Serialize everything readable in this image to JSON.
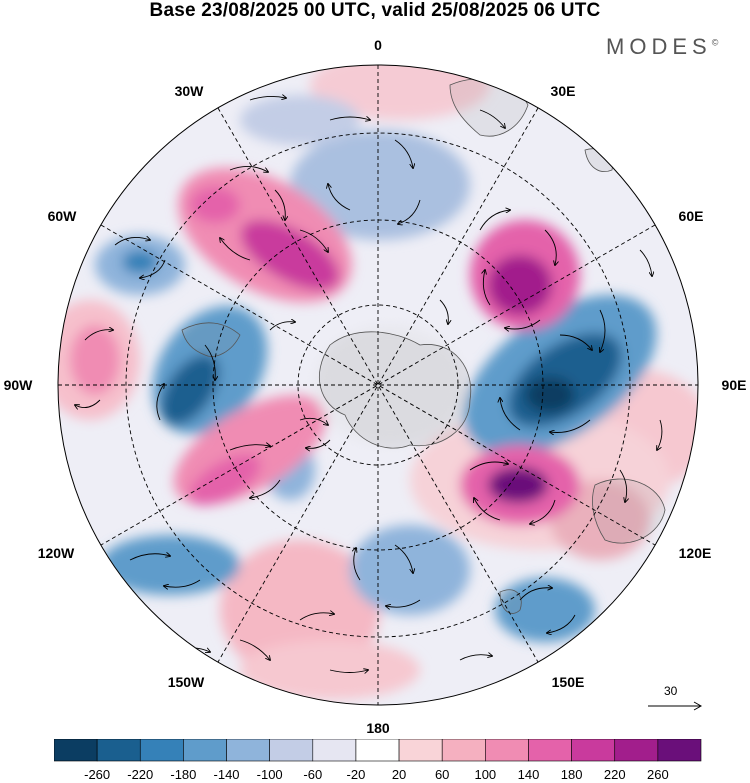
{
  "title": "Base 23/08/2025 00 UTC, valid 25/08/2025 06 UTC",
  "brand": "MODES",
  "brand_mark": "©",
  "map": {
    "projection": "south-polar-stereographic",
    "longitude_labels": [
      "0",
      "30E",
      "60E",
      "90E",
      "120E",
      "150E",
      "180",
      "150W",
      "120W",
      "90W",
      "60W",
      "30W"
    ],
    "vector_scale_label": "30"
  },
  "colorbar": {
    "ticks": [
      "-260",
      "-220",
      "-180",
      "-140",
      "-100",
      "-60",
      "-20",
      "20",
      "60",
      "100",
      "140",
      "180",
      "220",
      "260"
    ],
    "colors": [
      "#0b3d62",
      "#1a5f8f",
      "#3581b8",
      "#5f9ccb",
      "#8fb4db",
      "#c3cde6",
      "#e6e6f2",
      "#ffffff",
      "#f9d4d8",
      "#f5b0c0",
      "#f08cb3",
      "#e462aa",
      "#c93a9d",
      "#a21e8c",
      "#6a0f7a"
    ]
  }
}
